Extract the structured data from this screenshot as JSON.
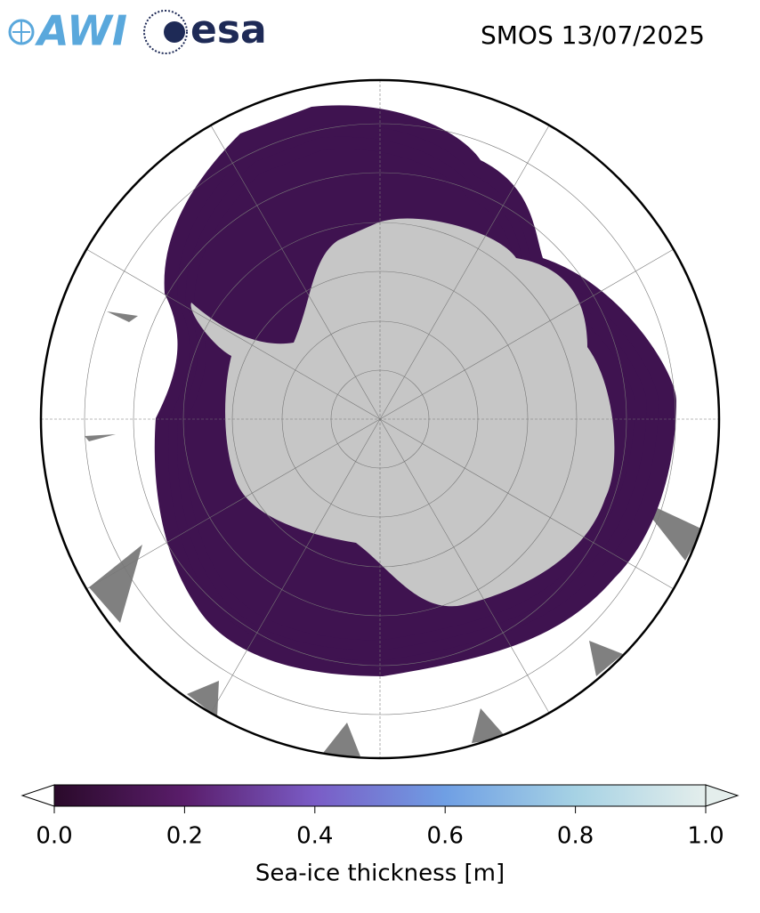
{
  "header": {
    "logos": [
      "AWI",
      "esa"
    ],
    "title": "SMOS 13/07/2025"
  },
  "colorbar": {
    "label": "Sea-ice thickness [m]",
    "lim": [
      0,
      1
    ],
    "ticks": [
      {
        "value": 0,
        "label": "0.0"
      },
      0.2,
      0.4,
      0.6,
      0.8,
      {
        "value": 1,
        "label": "1.0"
      }
    ],
    "colors": [
      "#2a0a2a",
      "#5a1d6b",
      "#7a5cc6",
      "#6f9fe4",
      "#a6d2e4",
      "#e4eeec"
    ]
  }
}
